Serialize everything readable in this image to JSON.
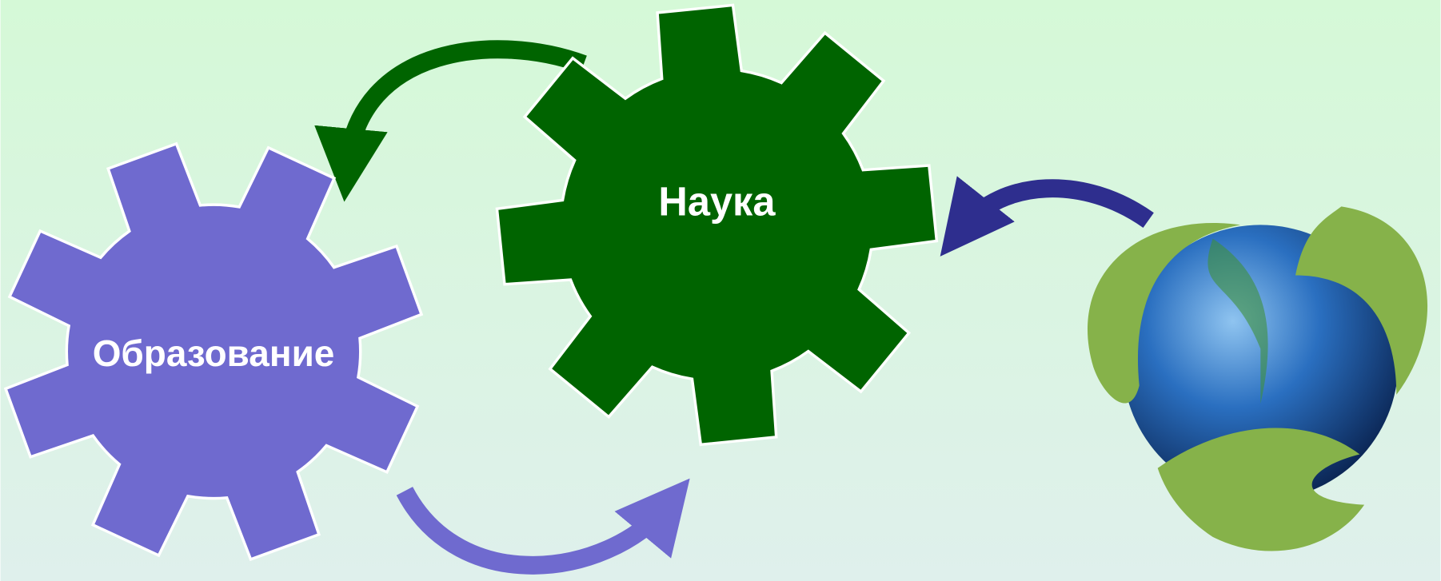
{
  "nodes": [
    {
      "label": "Образование"
    },
    {
      "label": "Наука"
    }
  ]
}
